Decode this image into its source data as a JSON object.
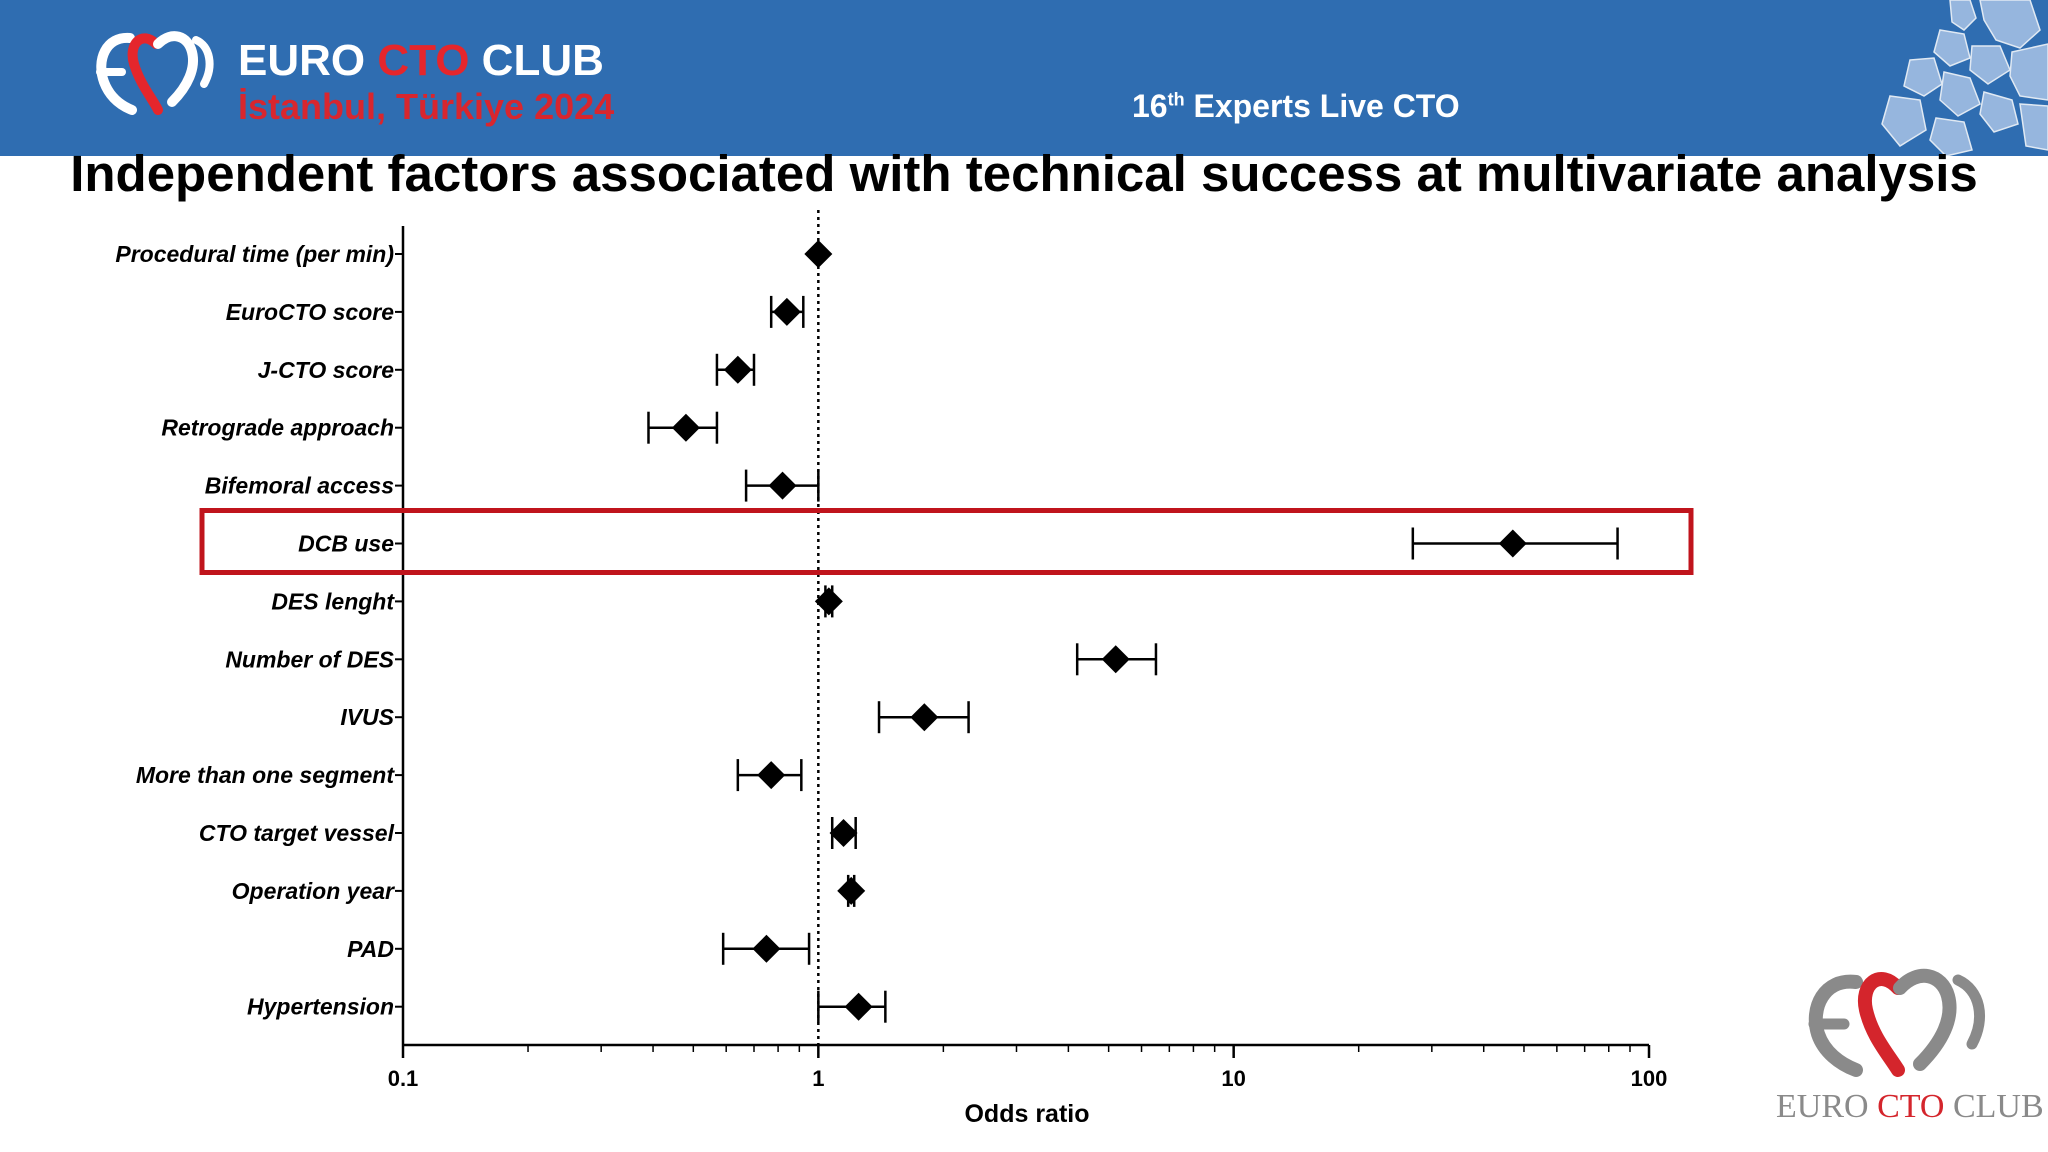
{
  "header": {
    "brand_part1": "EURO ",
    "brand_accent": "CTO",
    "brand_part3": " CLUB",
    "brand_subtitle": "İstanbul, Türkiye 2024",
    "event_number": "16",
    "event_suffix": "th",
    "event_rest": " Experts Live CTO",
    "logo_icon": "euro-cto-club-heart-logo",
    "map_icon": "europe-map-graphic",
    "bg_color": "#2f6db1",
    "accent_color": "#e5262c"
  },
  "slide_title": "Independent factors associated with technical success at multivariate analysis",
  "chart_data": {
    "type": "forest",
    "x_scale": "log",
    "xlim": [
      0.1,
      100
    ],
    "xlabel": "Odds ratio",
    "x_ticks": [
      {
        "value": 0.1,
        "label": "0.1"
      },
      {
        "value": 1,
        "label": "1"
      },
      {
        "value": 10,
        "label": "10"
      },
      {
        "value": 100,
        "label": "100"
      }
    ],
    "reference_line": 1,
    "rows": [
      {
        "label": "Procedural time (per min)",
        "or": 1.0,
        "low": 1.0,
        "high": 1.0
      },
      {
        "label": "EuroCTO score",
        "or": 0.84,
        "low": 0.77,
        "high": 0.92
      },
      {
        "label": "J-CTO score",
        "or": 0.64,
        "low": 0.57,
        "high": 0.7
      },
      {
        "label": "Retrograde approach",
        "or": 0.48,
        "low": 0.39,
        "high": 0.57
      },
      {
        "label": "Bifemoral access",
        "or": 0.82,
        "low": 0.67,
        "high": 1.0
      },
      {
        "label": "DCB use",
        "or": 47,
        "low": 27,
        "high": 84,
        "highlighted": true
      },
      {
        "label": "DES lenght",
        "or": 1.06,
        "low": 1.04,
        "high": 1.08
      },
      {
        "label": "Number of DES",
        "or": 5.2,
        "low": 4.2,
        "high": 6.5
      },
      {
        "label": "IVUS",
        "or": 1.8,
        "low": 1.4,
        "high": 2.3
      },
      {
        "label": "More than one segment",
        "or": 0.77,
        "low": 0.64,
        "high": 0.91
      },
      {
        "label": "CTO target vessel",
        "or": 1.15,
        "low": 1.08,
        "high": 1.23
      },
      {
        "label": "Operation year",
        "or": 1.2,
        "low": 1.18,
        "high": 1.22
      },
      {
        "label": "PAD",
        "or": 0.75,
        "low": 0.59,
        "high": 0.95
      },
      {
        "label": "Hypertension",
        "or": 1.25,
        "low": 1.0,
        "high": 1.45
      }
    ],
    "highlight_color": "#c0141c"
  },
  "footer": {
    "brand_part1": "EURO ",
    "brand_accent": "CTO",
    "brand_part3": " CLUB",
    "logo_icon": "euro-cto-club-heart-logo"
  }
}
